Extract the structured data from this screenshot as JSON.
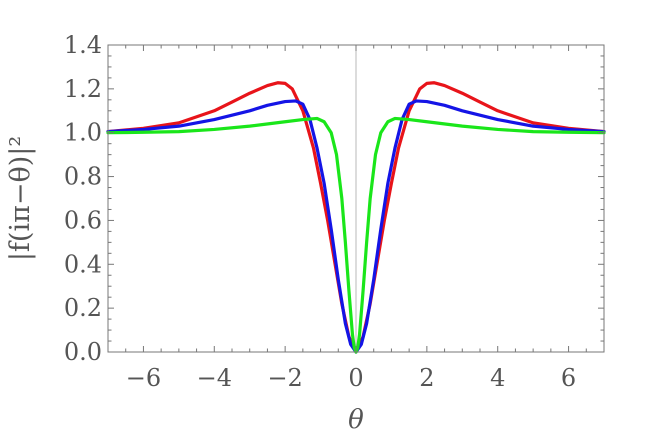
{
  "chart_data": {
    "type": "line",
    "title": "",
    "xlabel": "θ",
    "ylabel": "|f(iπ−θ)|²",
    "xlim": [
      -7,
      7
    ],
    "ylim": [
      0,
      1.4
    ],
    "x_ticks": [
      -6,
      -4,
      -2,
      0,
      2,
      4,
      6
    ],
    "x_tick_labels": [
      "−6",
      "−4",
      "−2",
      "0",
      "2",
      "4",
      "6"
    ],
    "y_ticks": [
      0.0,
      0.2,
      0.4,
      0.6,
      0.8,
      1.0,
      1.2,
      1.4
    ],
    "y_tick_labels": [
      "0.0",
      "0.2",
      "0.4",
      "0.6",
      "0.8",
      "1.0",
      "1.2",
      "1.4"
    ],
    "grid": false,
    "vertical_reference_line_x": 0,
    "series": [
      {
        "color": "#e8141a",
        "x": [
          -7,
          -6,
          -5,
          -4,
          -3.5,
          -3,
          -2.5,
          -2.2,
          -2,
          -1.8,
          -1.5,
          -1.2,
          -1,
          -0.8,
          -0.6,
          -0.4,
          -0.2,
          0,
          0.2,
          0.4,
          0.6,
          0.8,
          1,
          1.2,
          1.5,
          1.8,
          2,
          2.2,
          2.5,
          3,
          3.5,
          4,
          5,
          6,
          7
        ],
        "y": [
          1.005,
          1.02,
          1.045,
          1.1,
          1.14,
          1.18,
          1.215,
          1.228,
          1.225,
          1.2,
          1.1,
          0.93,
          0.77,
          0.6,
          0.41,
          0.22,
          0.07,
          0.0,
          0.07,
          0.22,
          0.41,
          0.6,
          0.77,
          0.93,
          1.1,
          1.2,
          1.225,
          1.228,
          1.215,
          1.18,
          1.14,
          1.1,
          1.045,
          1.02,
          1.005
        ]
      },
      {
        "color": "#1414e6",
        "x": [
          -7,
          -6,
          -5,
          -4,
          -3,
          -2.5,
          -2,
          -1.7,
          -1.5,
          -1.3,
          -1.1,
          -0.9,
          -0.7,
          -0.5,
          -0.3,
          -0.15,
          0,
          0.15,
          0.3,
          0.5,
          0.7,
          0.9,
          1.1,
          1.3,
          1.5,
          1.7,
          2,
          2.5,
          3,
          4,
          5,
          6,
          7
        ],
        "y": [
          1.005,
          1.015,
          1.03,
          1.06,
          1.1,
          1.125,
          1.142,
          1.145,
          1.13,
          1.06,
          0.93,
          0.77,
          0.56,
          0.33,
          0.13,
          0.035,
          0.0,
          0.035,
          0.13,
          0.33,
          0.56,
          0.77,
          0.93,
          1.06,
          1.13,
          1.145,
          1.142,
          1.125,
          1.1,
          1.06,
          1.03,
          1.015,
          1.005
        ]
      },
      {
        "color": "#1ae61a",
        "x": [
          -7,
          -6,
          -5,
          -4,
          -3,
          -2,
          -1.5,
          -1.1,
          -0.9,
          -0.7,
          -0.55,
          -0.4,
          -0.3,
          -0.2,
          -0.1,
          -0.05,
          0,
          0.05,
          0.1,
          0.2,
          0.3,
          0.4,
          0.55,
          0.7,
          0.9,
          1.1,
          1.5,
          2,
          3,
          4,
          5,
          6,
          7
        ],
        "y": [
          1.0,
          1.002,
          1.005,
          1.015,
          1.03,
          1.05,
          1.06,
          1.065,
          1.05,
          1.0,
          0.9,
          0.7,
          0.5,
          0.28,
          0.08,
          0.02,
          0.0,
          0.02,
          0.08,
          0.28,
          0.5,
          0.7,
          0.9,
          1.0,
          1.05,
          1.065,
          1.06,
          1.05,
          1.03,
          1.015,
          1.005,
          1.002,
          1.0
        ]
      }
    ]
  }
}
